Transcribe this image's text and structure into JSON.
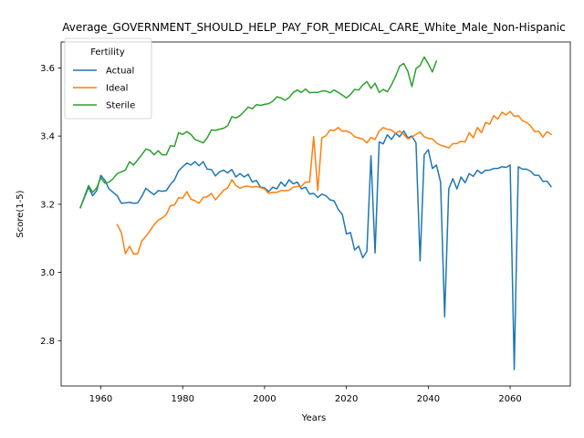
{
  "chart_data": {
    "type": "line",
    "title": "Average_GOVERNMENT_SHOULD_HELP_PAY_FOR_MEDICAL_CARE_White_Male_Non-Hispanic",
    "xlabel": "Years",
    "ylabel": "Score(1-5)",
    "xlim": [
      1950.3,
      2074.7
    ],
    "ylim": [
      2.667,
      3.676
    ],
    "xticks": [
      1960,
      1980,
      2000,
      2020,
      2040,
      2060
    ],
    "yticks": [
      2.8,
      3.0,
      3.2,
      3.4,
      3.6
    ],
    "grid": false,
    "legend": {
      "title": "Fertility",
      "placement": "top-left"
    },
    "series": [
      {
        "name": "Actual",
        "color": "#1f77b4",
        "x": [
          1955,
          1957,
          1958,
          1959,
          1960,
          1961,
          1962,
          1963,
          1964,
          1965,
          1966,
          1967,
          1968,
          1969,
          1970,
          1971,
          1972,
          1973,
          1974,
          1975,
          1976,
          1977,
          1978,
          1979,
          1980,
          1981,
          1982,
          1983,
          1984,
          1985,
          1986,
          1987,
          1988,
          1989,
          1990,
          1991,
          1992,
          1993,
          1994,
          1995,
          1996,
          1997,
          1998,
          1999,
          2000,
          2001,
          2002,
          2003,
          2004,
          2005,
          2006,
          2007,
          2008,
          2009,
          2010,
          2011,
          2012,
          2013,
          2014,
          2015,
          2016,
          2017,
          2018,
          2019,
          2020,
          2021,
          2022,
          2023,
          2024,
          2025,
          2026,
          2027,
          2028,
          2029,
          2030,
          2031,
          2032,
          2033,
          2034,
          2035,
          2036,
          2037,
          2038,
          2039,
          2040,
          2041,
          2042,
          2043,
          2044,
          2045,
          2046,
          2047,
          2048,
          2049,
          2050,
          2051,
          2052,
          2053,
          2054,
          2055,
          2056,
          2057,
          2058,
          2059,
          2060,
          2061,
          2062,
          2063,
          2064,
          2065,
          2066,
          2067,
          2068,
          2069,
          2070
        ],
        "values": [
          3.19,
          3.25,
          3.225,
          3.24,
          3.285,
          3.27,
          3.245,
          3.235,
          3.225,
          3.203,
          3.204,
          3.206,
          3.203,
          3.204,
          3.223,
          3.247,
          3.237,
          3.228,
          3.24,
          3.238,
          3.24,
          3.258,
          3.272,
          3.298,
          3.31,
          3.321,
          3.315,
          3.325,
          3.313,
          3.325,
          3.303,
          3.302,
          3.283,
          3.295,
          3.3,
          3.292,
          3.302,
          3.28,
          3.29,
          3.28,
          3.288,
          3.265,
          3.27,
          3.25,
          3.248,
          3.237,
          3.25,
          3.245,
          3.265,
          3.253,
          3.272,
          3.26,
          3.265,
          3.245,
          3.25,
          3.23,
          3.232,
          3.22,
          3.23,
          3.225,
          3.213,
          3.21,
          3.185,
          3.17,
          3.113,
          3.117,
          3.066,
          3.077,
          3.043,
          3.062,
          3.342,
          3.057,
          3.383,
          3.377,
          3.404,
          3.39,
          3.408,
          3.398,
          3.415,
          3.395,
          3.4,
          3.38,
          3.034,
          3.345,
          3.36,
          3.305,
          3.315,
          3.265,
          2.87,
          3.245,
          3.275,
          3.245,
          3.28,
          3.263,
          3.29,
          3.282,
          3.3,
          3.29,
          3.3,
          3.3,
          3.305,
          3.305,
          3.31,
          3.308,
          3.315,
          2.715,
          3.31,
          3.303,
          3.303,
          3.297,
          3.285,
          3.285,
          3.267,
          3.268,
          3.252
        ]
      },
      {
        "name": "Ideal",
        "color": "#ff7f0e",
        "x": [
          1964,
          1965,
          1966,
          1967,
          1968,
          1969,
          1970,
          1971,
          1972,
          1973,
          1974,
          1975,
          1976,
          1977,
          1978,
          1979,
          1980,
          1981,
          1982,
          1983,
          1984,
          1985,
          1986,
          1987,
          1988,
          1989,
          1990,
          1991,
          1992,
          1993,
          1994,
          1995,
          1996,
          1997,
          1998,
          1999,
          2000,
          2001,
          2002,
          2003,
          2004,
          2005,
          2006,
          2007,
          2008,
          2009,
          2010,
          2011,
          2012,
          2013,
          2014,
          2015,
          2016,
          2017,
          2018,
          2019,
          2020,
          2021,
          2022,
          2023,
          2024,
          2025,
          2026,
          2027,
          2028,
          2029,
          2030,
          2031,
          2032,
          2033,
          2034,
          2035,
          2036,
          2037,
          2038,
          2039,
          2040,
          2041,
          2042,
          2043,
          2044,
          2045,
          2046,
          2047,
          2048,
          2049,
          2050,
          2051,
          2052,
          2053,
          2054,
          2055,
          2056,
          2057,
          2058,
          2059,
          2060,
          2061,
          2062,
          2063,
          2064,
          2065,
          2066,
          2067,
          2068,
          2069,
          2070
        ],
        "values": [
          3.14,
          3.118,
          3.055,
          3.077,
          3.054,
          3.055,
          3.092,
          3.106,
          3.122,
          3.14,
          3.153,
          3.16,
          3.17,
          3.196,
          3.198,
          3.219,
          3.218,
          3.237,
          3.215,
          3.21,
          3.203,
          3.22,
          3.222,
          3.232,
          3.213,
          3.227,
          3.241,
          3.248,
          3.272,
          3.255,
          3.247,
          3.252,
          3.253,
          3.25,
          3.252,
          3.249,
          3.245,
          3.232,
          3.235,
          3.235,
          3.24,
          3.24,
          3.241,
          3.25,
          3.252,
          3.253,
          3.265,
          3.265,
          3.398,
          3.24,
          3.395,
          3.401,
          3.418,
          3.416,
          3.425,
          3.414,
          3.415,
          3.41,
          3.398,
          3.395,
          3.391,
          3.38,
          3.396,
          3.39,
          3.415,
          3.425,
          3.42,
          3.418,
          3.408,
          3.415,
          3.405,
          3.392,
          3.397,
          3.405,
          3.412,
          3.398,
          3.393,
          3.392,
          3.38,
          3.373,
          3.37,
          3.365,
          3.378,
          3.378,
          3.385,
          3.383,
          3.41,
          3.395,
          3.425,
          3.41,
          3.44,
          3.435,
          3.46,
          3.45,
          3.47,
          3.462,
          3.472,
          3.458,
          3.46,
          3.445,
          3.44,
          3.43,
          3.413,
          3.414,
          3.397,
          3.413,
          3.405
        ]
      },
      {
        "name": "Sterile",
        "color": "#2ca02c",
        "x": [
          1955,
          1957,
          1958,
          1959,
          1960,
          1961,
          1962,
          1963,
          1964,
          1965,
          1966,
          1967,
          1968,
          1969,
          1970,
          1971,
          1972,
          1973,
          1974,
          1975,
          1976,
          1977,
          1978,
          1979,
          1980,
          1981,
          1982,
          1983,
          1984,
          1985,
          1986,
          1987,
          1988,
          1989,
          1990,
          1991,
          1992,
          1993,
          1994,
          1995,
          1996,
          1997,
          1998,
          1999,
          2000,
          2001,
          2002,
          2003,
          2004,
          2005,
          2006,
          2007,
          2008,
          2009,
          2010,
          2011,
          2012,
          2013,
          2014,
          2015,
          2016,
          2017,
          2018,
          2019,
          2020,
          2021,
          2022,
          2023,
          2024,
          2025,
          2026,
          2027,
          2028,
          2029,
          2030,
          2031,
          2032,
          2033,
          2034,
          2035,
          2036,
          2037,
          2038,
          2039,
          2040,
          2041,
          2042
        ],
        "values": [
          3.19,
          3.255,
          3.235,
          3.248,
          3.278,
          3.262,
          3.265,
          3.275,
          3.29,
          3.295,
          3.3,
          3.325,
          3.315,
          3.33,
          3.345,
          3.362,
          3.358,
          3.345,
          3.357,
          3.345,
          3.345,
          3.372,
          3.37,
          3.41,
          3.405,
          3.413,
          3.405,
          3.39,
          3.385,
          3.38,
          3.395,
          3.418,
          3.417,
          3.42,
          3.423,
          3.43,
          3.457,
          3.453,
          3.46,
          3.472,
          3.485,
          3.48,
          3.492,
          3.49,
          3.493,
          3.495,
          3.502,
          3.515,
          3.512,
          3.505,
          3.513,
          3.528,
          3.535,
          3.528,
          3.538,
          3.527,
          3.528,
          3.528,
          3.532,
          3.532,
          3.527,
          3.535,
          3.528,
          3.52,
          3.512,
          3.522,
          3.537,
          3.535,
          3.55,
          3.56,
          3.54,
          3.555,
          3.528,
          3.537,
          3.53,
          3.55,
          3.575,
          3.605,
          3.613,
          3.59,
          3.545,
          3.598,
          3.607,
          3.632,
          3.612,
          3.588,
          3.62
        ]
      }
    ]
  }
}
